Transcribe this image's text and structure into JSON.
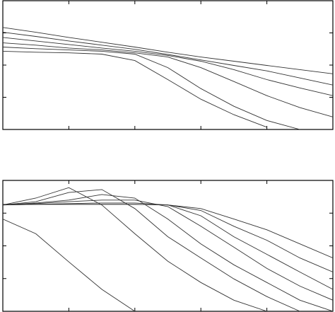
{
  "chart_data": [
    {
      "type": "line",
      "x": [
        0,
        0.5,
        1,
        1.5,
        2,
        2.5,
        3,
        3.5,
        4,
        4.5,
        5
      ],
      "xlim": [
        0,
        5
      ],
      "ylim": [
        0,
        4
      ],
      "xticks": [
        1,
        2,
        3,
        4
      ],
      "yticks": [
        1,
        2,
        3
      ],
      "color": "#333333",
      "series": [
        {
          "values": [
            3.17,
            3.02,
            2.86,
            2.71,
            2.56,
            2.4,
            2.25,
            2.12,
            1.99,
            1.86,
            1.73
          ]
        },
        {
          "values": [
            3.02,
            2.89,
            2.75,
            2.62,
            2.49,
            2.33,
            2.16,
            1.99,
            1.82,
            1.6,
            1.38
          ]
        },
        {
          "values": [
            2.86,
            2.75,
            2.64,
            2.53,
            2.43,
            2.3,
            2.12,
            1.86,
            1.55,
            1.29,
            1.05
          ]
        },
        {
          "values": [
            2.69,
            2.62,
            2.53,
            2.47,
            2.38,
            2.25,
            1.92,
            1.49,
            1.05,
            0.68,
            0.39
          ]
        },
        {
          "values": [
            2.56,
            2.51,
            2.47,
            2.43,
            2.34,
            1.92,
            1.27,
            0.72,
            0.28,
            0,
            null
          ]
        },
        {
          "values": [
            2.43,
            2.4,
            2.38,
            2.34,
            2.14,
            1.55,
            0.94,
            0.46,
            0.07,
            null,
            null
          ]
        }
      ]
    },
    {
      "type": "line",
      "x": [
        0,
        0.5,
        1,
        1.5,
        2,
        2.5,
        3,
        3.5,
        4,
        4.5,
        5
      ],
      "xlim": [
        0,
        5
      ],
      "ylim": [
        0,
        4
      ],
      "xticks": [
        1,
        2,
        3,
        4
      ],
      "yticks": [
        1,
        2,
        3
      ],
      "color": "#333333",
      "series": [
        {
          "values": [
            2.82,
            2.37,
            1.51,
            0.67,
            0,
            null,
            null,
            null,
            null,
            null,
            null
          ]
        },
        {
          "values": [
            3.25,
            3.46,
            3.78,
            3.25,
            2.37,
            1.53,
            0.88,
            0.34,
            0,
            null,
            null
          ]
        },
        {
          "values": [
            3.25,
            3.35,
            3.63,
            3.72,
            3.14,
            2.28,
            1.63,
            0.99,
            0.45,
            0,
            null
          ]
        },
        {
          "values": [
            3.25,
            3.31,
            3.4,
            3.57,
            3.46,
            2.82,
            2.06,
            1.42,
            0.88,
            0.34,
            0
          ]
        },
        {
          "values": [
            3.25,
            3.29,
            3.35,
            3.4,
            3.4,
            3.2,
            2.6,
            1.96,
            1.31,
            0.77,
            0.34
          ]
        },
        {
          "values": [
            3.25,
            3.27,
            3.29,
            3.31,
            3.31,
            3.25,
            2.92,
            2.28,
            1.74,
            1.2,
            0.67
          ]
        },
        {
          "values": [
            3.25,
            3.27,
            3.27,
            3.27,
            3.27,
            3.25,
            3.08,
            2.6,
            2.17,
            1.63,
            1.2
          ]
        },
        {
          "values": [
            3.27,
            3.27,
            3.27,
            3.27,
            3.27,
            3.25,
            3.14,
            2.82,
            2.49,
            2.06,
            1.63
          ]
        }
      ]
    }
  ]
}
